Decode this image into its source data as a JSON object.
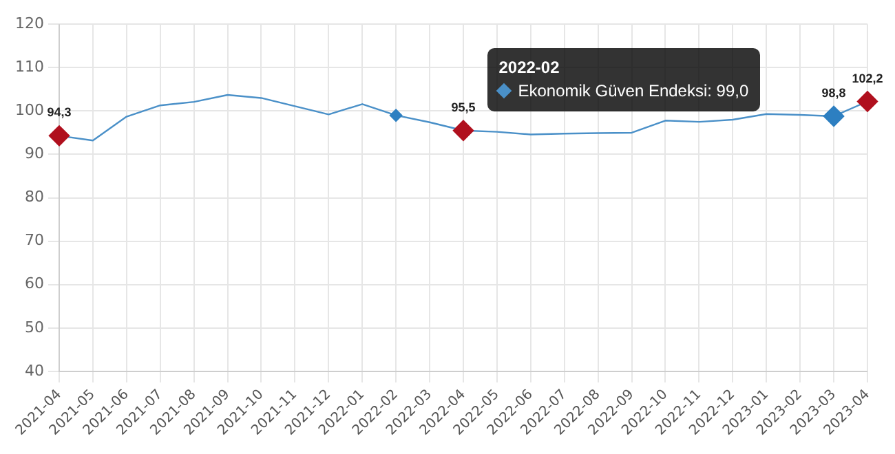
{
  "chart_data": {
    "type": "line",
    "categories": [
      "2021-04",
      "2021-05",
      "2021-06",
      "2021-07",
      "2021-08",
      "2021-09",
      "2021-10",
      "2021-11",
      "2021-12",
      "2022-01",
      "2022-02",
      "2022-03",
      "2022-04",
      "2022-05",
      "2022-06",
      "2022-07",
      "2022-08",
      "2022-09",
      "2022-10",
      "2022-11",
      "2022-12",
      "2023-01",
      "2023-02",
      "2023-03",
      "2023-04"
    ],
    "series": [
      {
        "color": "#4a90c8",
        "values": [
          94.3,
          93.2,
          98.7,
          101.3,
          102.1,
          103.7,
          103.0,
          101.1,
          99.2,
          101.6,
          99.0,
          97.4,
          95.5,
          95.2,
          94.6,
          94.8,
          94.9,
          95.0,
          97.8,
          97.5,
          98.0,
          99.3,
          99.1,
          98.8,
          102.2
        ],
        "colors": [
          "#b0101e",
          null,
          null,
          null,
          null,
          null,
          null,
          null,
          null,
          null,
          "#2d7fc1",
          null,
          "#b0101e",
          null,
          null,
          null,
          null,
          null,
          null,
          null,
          null,
          null,
          null,
          "#2d7fc1",
          "#b0101e"
        ],
        "value_labels": [
          "94,3",
          null,
          null,
          null,
          null,
          null,
          null,
          null,
          null,
          null,
          null,
          null,
          "95,5",
          null,
          null,
          null,
          null,
          null,
          null,
          null,
          null,
          null,
          null,
          "98,8",
          "102,2"
        ]
      }
    ],
    "annotations": [
      "2022-02",
      "Ekonomik Güven Endeksi: 99,0"
    ],
    "ylim": [
      40,
      120
    ],
    "yticks": [
      40,
      50,
      60,
      70,
      80,
      90,
      100,
      110,
      120
    ],
    "grid": true,
    "line_style": "solid",
    "legend": false
  }
}
